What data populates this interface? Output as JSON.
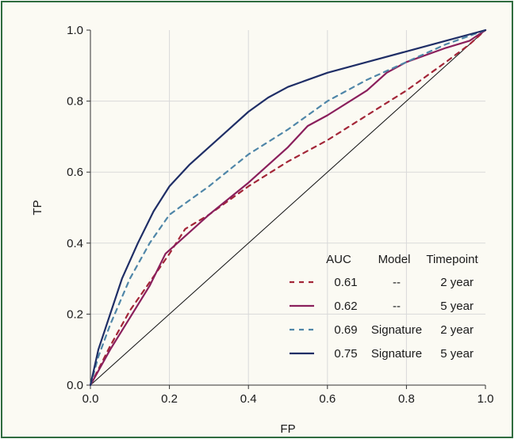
{
  "chart_data": {
    "type": "line",
    "title": "",
    "xlabel": "FP",
    "ylabel": "TP",
    "xlim": [
      0,
      1
    ],
    "ylim": [
      0,
      1
    ],
    "xticks": [
      "0.0",
      "0.2",
      "0.4",
      "0.6",
      "0.8",
      "1.0"
    ],
    "yticks": [
      "0.0",
      "0.2",
      "0.4",
      "0.6",
      "0.8",
      "1.0"
    ],
    "legend_placement": "bottom-right",
    "legend_headers": [
      "AUC",
      "Model",
      "Timepoint"
    ],
    "series": [
      {
        "auc": "0.61",
        "model": "--",
        "timepoint": "2 year",
        "color": "#a32638",
        "style": "dashed",
        "points": [
          [
            0,
            0
          ],
          [
            0.05,
            0.11
          ],
          [
            0.1,
            0.21
          ],
          [
            0.15,
            0.29
          ],
          [
            0.2,
            0.37
          ],
          [
            0.24,
            0.44
          ],
          [
            0.3,
            0.48
          ],
          [
            0.4,
            0.56
          ],
          [
            0.5,
            0.63
          ],
          [
            0.6,
            0.69
          ],
          [
            0.7,
            0.76
          ],
          [
            0.8,
            0.83
          ],
          [
            0.9,
            0.91
          ],
          [
            0.96,
            0.96
          ],
          [
            1,
            1
          ]
        ]
      },
      {
        "auc": "0.62",
        "model": "--",
        "timepoint": "5 year",
        "color": "#8a1f5c",
        "style": "solid",
        "points": [
          [
            0,
            0
          ],
          [
            0.05,
            0.1
          ],
          [
            0.1,
            0.19
          ],
          [
            0.15,
            0.28
          ],
          [
            0.19,
            0.37
          ],
          [
            0.25,
            0.43
          ],
          [
            0.3,
            0.48
          ],
          [
            0.4,
            0.57
          ],
          [
            0.5,
            0.67
          ],
          [
            0.55,
            0.73
          ],
          [
            0.6,
            0.76
          ],
          [
            0.7,
            0.83
          ],
          [
            0.75,
            0.88
          ],
          [
            0.8,
            0.91
          ],
          [
            0.9,
            0.95
          ],
          [
            0.96,
            0.97
          ],
          [
            1,
            1
          ]
        ]
      },
      {
        "auc": "0.69",
        "model": "Signature",
        "timepoint": "2 year",
        "color": "#4f86a8",
        "style": "dashed",
        "points": [
          [
            0,
            0
          ],
          [
            0.02,
            0.08
          ],
          [
            0.05,
            0.17
          ],
          [
            0.1,
            0.3
          ],
          [
            0.15,
            0.4
          ],
          [
            0.2,
            0.48
          ],
          [
            0.25,
            0.52
          ],
          [
            0.3,
            0.56
          ],
          [
            0.4,
            0.65
          ],
          [
            0.5,
            0.72
          ],
          [
            0.6,
            0.8
          ],
          [
            0.7,
            0.86
          ],
          [
            0.8,
            0.91
          ],
          [
            0.9,
            0.96
          ],
          [
            1,
            1
          ]
        ]
      },
      {
        "auc": "0.75",
        "model": "Signature",
        "timepoint": "5 year",
        "color": "#1f2e66",
        "style": "solid",
        "points": [
          [
            0,
            0
          ],
          [
            0.02,
            0.1
          ],
          [
            0.05,
            0.2
          ],
          [
            0.08,
            0.3
          ],
          [
            0.12,
            0.4
          ],
          [
            0.16,
            0.49
          ],
          [
            0.2,
            0.56
          ],
          [
            0.25,
            0.62
          ],
          [
            0.3,
            0.67
          ],
          [
            0.35,
            0.72
          ],
          [
            0.4,
            0.77
          ],
          [
            0.45,
            0.81
          ],
          [
            0.5,
            0.84
          ],
          [
            0.6,
            0.88
          ],
          [
            0.7,
            0.91
          ],
          [
            0.8,
            0.94
          ],
          [
            0.9,
            0.97
          ],
          [
            1,
            1
          ]
        ]
      }
    ],
    "reference_line": [
      [
        0,
        0
      ],
      [
        1,
        1
      ]
    ]
  }
}
